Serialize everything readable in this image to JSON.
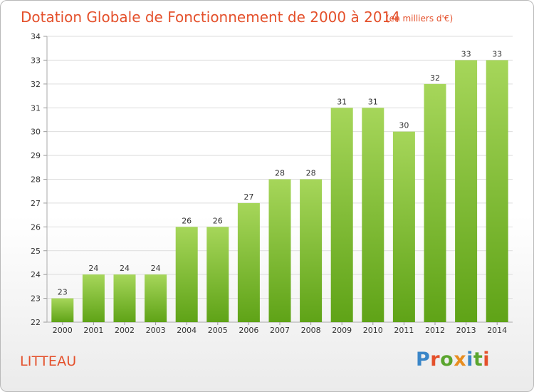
{
  "colors": {
    "accent": "#e4502b",
    "bar_top": "#a6d65a",
    "bar_bottom": "#5fa317",
    "grid": "#dddddd"
  },
  "chart_data": {
    "type": "bar",
    "title": "Dotation Globale de Fonctionnement de 2000 à 2014",
    "subtitle": "(en milliers d'€)",
    "xlabel": "",
    "ylabel": "",
    "categories": [
      "2000",
      "2001",
      "2002",
      "2003",
      "2004",
      "2005",
      "2006",
      "2007",
      "2008",
      "2009",
      "2010",
      "2011",
      "2012",
      "2013",
      "2014"
    ],
    "values": [
      23,
      24,
      24,
      24,
      26,
      26,
      27,
      28,
      28,
      31,
      31,
      30,
      32,
      33,
      33
    ],
    "data_labels": [
      "23",
      "24",
      "24",
      "24",
      "26",
      "26",
      "27",
      "28",
      "28",
      "31",
      "31",
      "30",
      "32",
      "33",
      "33"
    ],
    "ylim": [
      22,
      34
    ],
    "yticks": [
      22,
      23,
      24,
      25,
      26,
      27,
      28,
      29,
      30,
      31,
      32,
      33,
      34
    ],
    "grid": true
  },
  "commune": "LITTEAU",
  "logo": {
    "text": "Proxiti",
    "letter_colors": [
      "#3a86c8",
      "#e4502b",
      "#5aa52e",
      "#e88d1f",
      "#3a86c8",
      "#5aa52e",
      "#e4502b"
    ]
  }
}
